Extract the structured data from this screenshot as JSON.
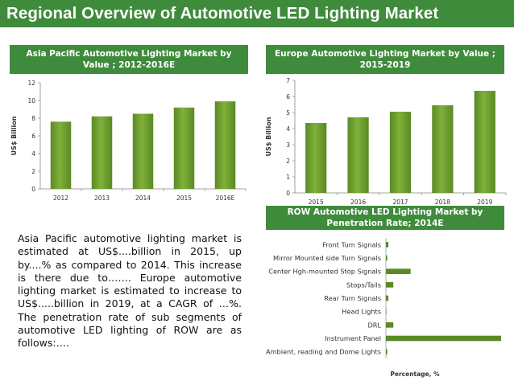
{
  "title": "Regional Overview of Automotive LED Lighting Market",
  "body_text": "Asia Pacific automotive lighting market is estimated at US$....billion in 2015, up by....% as compared to 2014. This increase is there due to……. Europe automotive lighting market is estimated to increase to US$.....billion in 2019, at a CAGR of …%. The penetration rate of sub segments of automotive LED lighting of ROW are as follows:….",
  "colors": {
    "header": "#3f8b3c",
    "bar": "#7fb03a",
    "bar_dark": "#5a8a24"
  },
  "chart_data": [
    {
      "type": "bar",
      "title": "Asia Pacific Automotive Lighting Market by Value ; 2012-2016E",
      "categories": [
        "2012",
        "2013",
        "2014",
        "2015",
        "2016E"
      ],
      "values": [
        7.6,
        8.2,
        8.5,
        9.2,
        9.9
      ],
      "xlabel": "",
      "ylabel": "US$ Billion",
      "ylim": [
        0,
        12
      ],
      "yticks": [
        "0",
        "2",
        "4",
        "6",
        "8",
        "10",
        "12"
      ],
      "grid": false
    },
    {
      "type": "bar",
      "title": "Europe Automotive Lighting Market by Value ; 2015-2019",
      "categories": [
        "2015",
        "2016",
        "2017",
        "2018",
        "2019"
      ],
      "values": [
        4.35,
        4.7,
        5.05,
        5.45,
        6.35
      ],
      "xlabel": "",
      "ylabel": "US$ Billion",
      "ylim": [
        0,
        7
      ],
      "yticks": [
        "0",
        "1",
        "2",
        "3",
        "4",
        "5",
        "6",
        "7"
      ],
      "grid": false
    },
    {
      "type": "bar",
      "orientation": "horizontal",
      "title": "ROW Automotive LED Lighting Market by Penetration Rate; 2014E",
      "categories": [
        "Front Turn Signals",
        "Mirror Mounted side Turn Signals",
        "Center Hgh-mounted Stop Signals",
        "Stops/Tails",
        "Rear Turn Signals",
        "Head Lights",
        "DRL",
        "Instrument Panel",
        "Ambient, reading and Dome Lights"
      ],
      "values": [
        1.5,
        0.8,
        15,
        4.5,
        1.5,
        0.3,
        4.5,
        70,
        0.8
      ],
      "xlabel": "Percentage, %",
      "ylabel": "",
      "xlim": [
        0,
        71
      ]
    }
  ]
}
